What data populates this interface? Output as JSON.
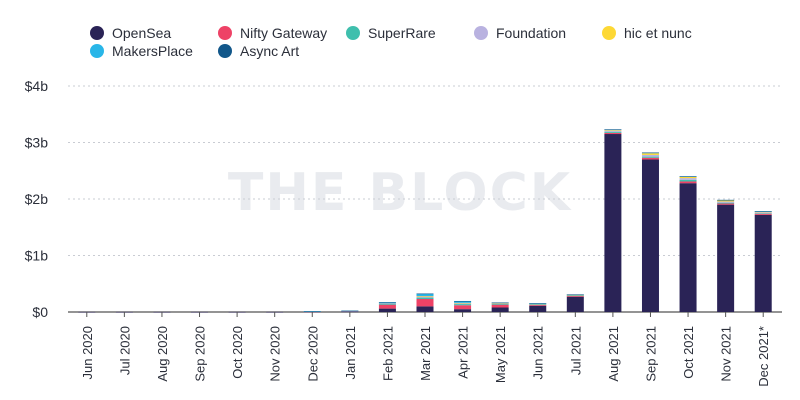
{
  "watermark": "THE BLOCK",
  "chart_data": {
    "type": "bar",
    "stacked": true,
    "title": "",
    "xlabel": "",
    "ylabel": "",
    "ylim": [
      0,
      4
    ],
    "y_ticks": [
      0,
      1,
      2,
      3,
      4
    ],
    "y_tick_labels": [
      "$0",
      "$1b",
      "$2b",
      "$3b",
      "$4b"
    ],
    "grid": "horizontal dotted",
    "legend_position": "top-left",
    "categories": [
      "Jun 2020",
      "Jul 2020",
      "Aug 2020",
      "Sep 2020",
      "Oct 2020",
      "Nov 2020",
      "Dec 2020",
      "Jan 2021",
      "Feb 2021",
      "Mar 2021",
      "Apr 2021",
      "May 2021",
      "Jun 2021",
      "Jul 2021",
      "Aug 2021",
      "Sep 2021",
      "Oct 2021",
      "Nov 2021",
      "Dec 2021*"
    ],
    "series": [
      {
        "name": "OpenSea",
        "color": "#2a2356",
        "values": [
          0.002,
          0.002,
          0.002,
          0.002,
          0.002,
          0.002,
          0.005,
          0.008,
          0.06,
          0.1,
          0.05,
          0.08,
          0.11,
          0.27,
          3.15,
          2.7,
          2.28,
          1.9,
          1.72
        ]
      },
      {
        "name": "Nifty Gateway",
        "color": "#ee4266",
        "values": [
          0,
          0,
          0,
          0,
          0,
          0,
          0.003,
          0.006,
          0.07,
          0.13,
          0.07,
          0.05,
          0.015,
          0.015,
          0.02,
          0.03,
          0.03,
          0.02,
          0.02
        ]
      },
      {
        "name": "SuperRare",
        "color": "#3fbfad",
        "values": [
          0,
          0,
          0,
          0,
          0,
          0,
          0.002,
          0.004,
          0.02,
          0.025,
          0.02,
          0.012,
          0.008,
          0.008,
          0.02,
          0.02,
          0.03,
          0.015,
          0.01
        ]
      },
      {
        "name": "Foundation",
        "color": "#b9b2e0",
        "values": [
          0,
          0,
          0,
          0,
          0,
          0,
          0,
          0.002,
          0.01,
          0.025,
          0.018,
          0.012,
          0.012,
          0.008,
          0.02,
          0.03,
          0.03,
          0.02,
          0.015
        ]
      },
      {
        "name": "hic et nunc",
        "color": "#fdd835",
        "values": [
          0,
          0,
          0,
          0,
          0,
          0,
          0,
          0,
          0,
          0.003,
          0.004,
          0.004,
          0.004,
          0.004,
          0.01,
          0.03,
          0.02,
          0.02,
          0.01
        ]
      },
      {
        "name": "MakersPlace",
        "color": "#29b6e8",
        "values": [
          0,
          0,
          0,
          0,
          0,
          0,
          0.002,
          0.003,
          0.01,
          0.04,
          0.03,
          0.008,
          0.004,
          0.004,
          0.01,
          0.01,
          0.01,
          0.008,
          0.008
        ]
      },
      {
        "name": "Async Art",
        "color": "#12578a",
        "values": [
          0,
          0,
          0,
          0,
          0,
          0,
          0.001,
          0.001,
          0.004,
          0.004,
          0.003,
          0.002,
          0.002,
          0.002,
          0.003,
          0.003,
          0.002,
          0.002,
          0.002
        ]
      }
    ]
  }
}
